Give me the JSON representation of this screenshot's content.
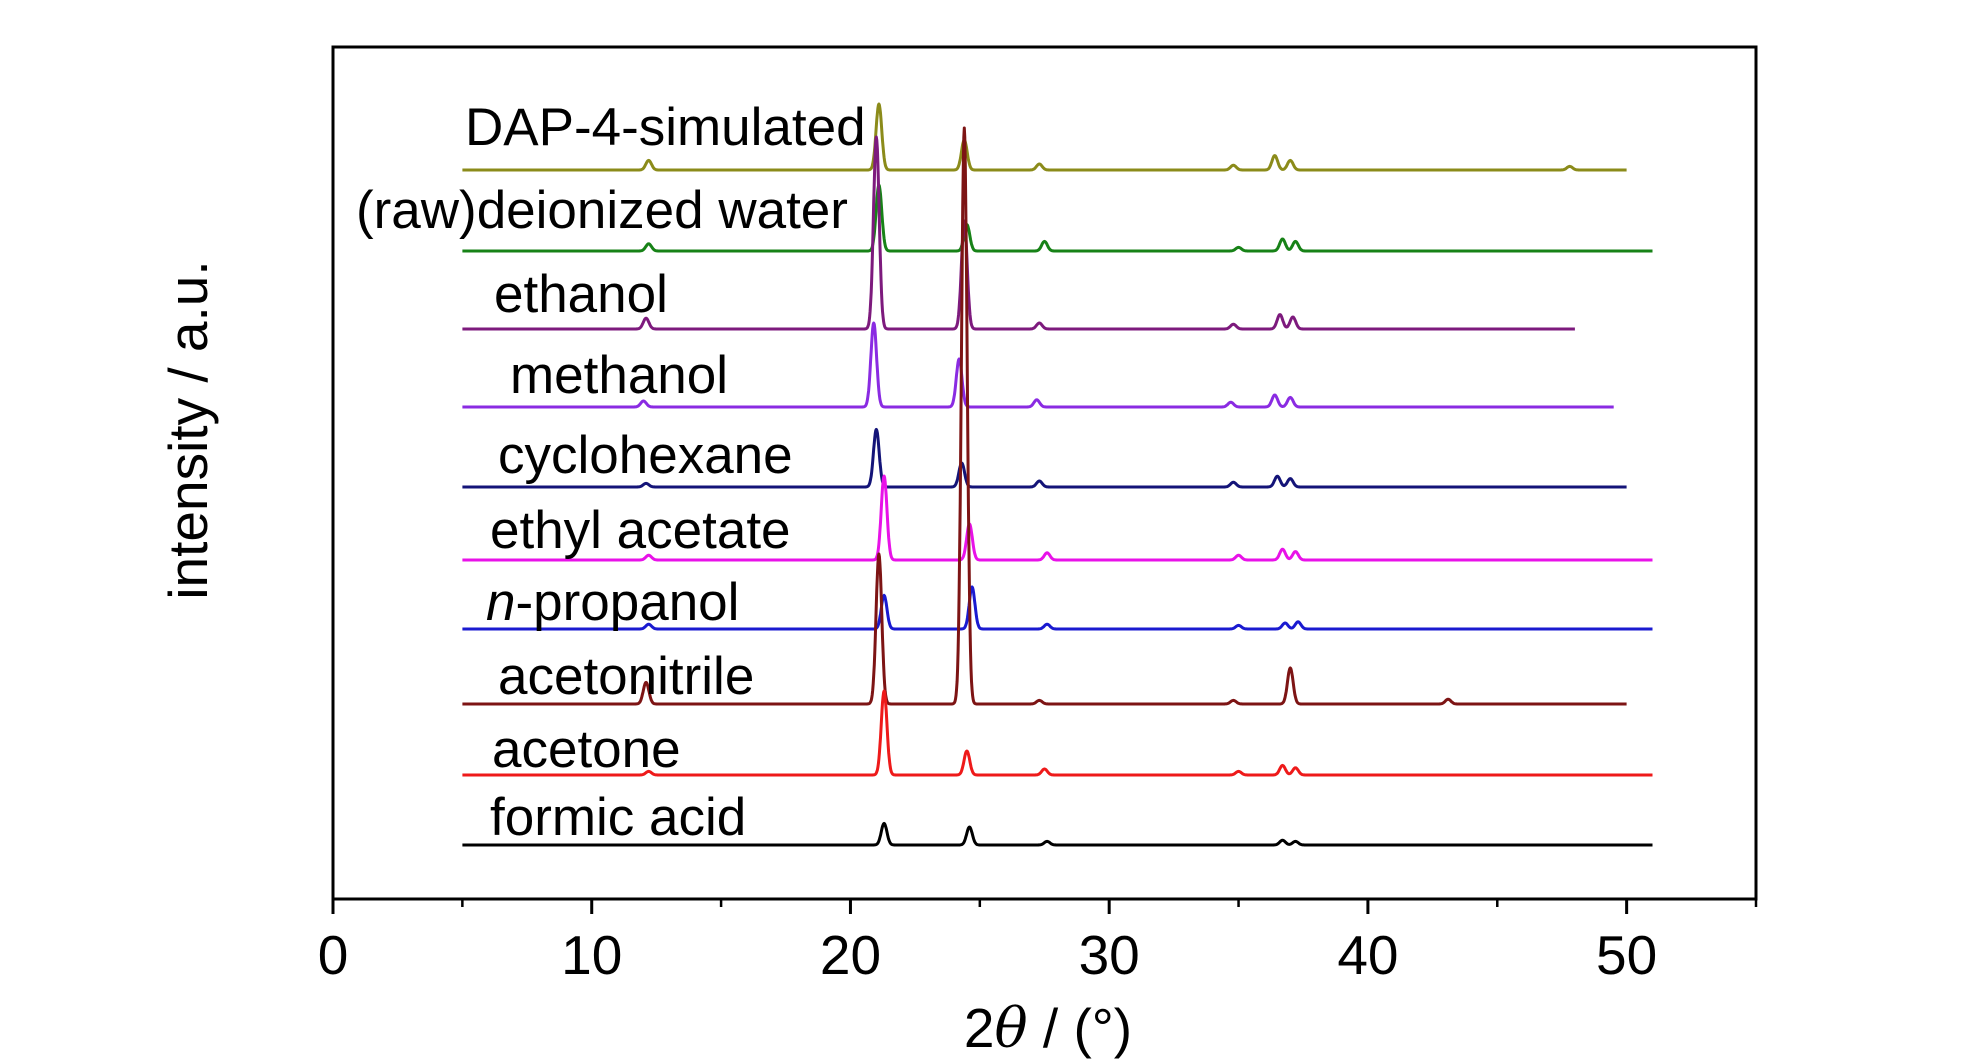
{
  "chart_data": {
    "type": "line",
    "xlabel": {
      "prefix": "2",
      "symbol": "θ",
      "suffix": " / (°)"
    },
    "ylabel": "intensity / a.u.",
    "xlim": [
      0,
      55
    ],
    "xticks": [
      0,
      10,
      20,
      30,
      40,
      50
    ],
    "xticks_minor": [
      5,
      15,
      25,
      35,
      45,
      55
    ],
    "grid": false,
    "legend": "none",
    "series": [
      {
        "name": "DAP-4-simulated",
        "color": "#8b8b1a",
        "x_range": [
          5,
          50
        ],
        "peaks": [
          [
            12.2,
            8
          ],
          [
            21.1,
            55
          ],
          [
            24.4,
            25
          ],
          [
            27.3,
            5
          ],
          [
            34.8,
            4
          ],
          [
            36.4,
            12
          ],
          [
            37.0,
            8
          ],
          [
            47.8,
            3
          ]
        ]
      },
      {
        "name_parts": [
          "(raw)deionized water"
        ],
        "color": "#178217",
        "x_range": [
          5,
          51
        ],
        "peaks": [
          [
            12.2,
            6
          ],
          [
            21.1,
            55
          ],
          [
            24.5,
            22
          ],
          [
            27.5,
            8
          ],
          [
            35.0,
            3
          ],
          [
            36.7,
            10
          ],
          [
            37.2,
            8
          ]
        ]
      },
      {
        "name_parts": [
          "ethanol"
        ],
        "color": "#7d1a7d",
        "x_range": [
          5,
          48
        ],
        "peaks": [
          [
            12.1,
            9
          ],
          [
            21.0,
            160
          ],
          [
            24.4,
            90
          ],
          [
            27.3,
            5
          ],
          [
            34.8,
            4
          ],
          [
            36.6,
            12
          ],
          [
            37.1,
            10
          ]
        ]
      },
      {
        "name_parts": [
          "methanol"
        ],
        "color": "#8a2be2",
        "x_range": [
          5,
          49.5
        ],
        "peaks": [
          [
            12.0,
            5
          ],
          [
            20.9,
            70
          ],
          [
            24.2,
            40
          ],
          [
            27.2,
            6
          ],
          [
            34.7,
            4
          ],
          [
            36.4,
            10
          ],
          [
            37.0,
            8
          ]
        ]
      },
      {
        "name_parts": [
          "cyclohexane"
        ],
        "color": "#141478",
        "x_range": [
          5,
          50
        ],
        "peaks": [
          [
            12.1,
            3
          ],
          [
            21.0,
            48
          ],
          [
            24.3,
            20
          ],
          [
            27.3,
            5
          ],
          [
            34.8,
            4
          ],
          [
            36.5,
            9
          ],
          [
            37.0,
            7
          ]
        ]
      },
      {
        "name_parts": [
          "ethyl acetate"
        ],
        "color": "#e812e8",
        "x_range": [
          5,
          51
        ],
        "peaks": [
          [
            12.2,
            4
          ],
          [
            21.3,
            70
          ],
          [
            24.6,
            30
          ],
          [
            27.6,
            6
          ],
          [
            35.0,
            4
          ],
          [
            36.7,
            9
          ],
          [
            37.2,
            7
          ]
        ]
      },
      {
        "name_parts": [
          "n",
          "-propanol"
        ],
        "color": "#1a1ad0",
        "x_range": [
          5,
          51
        ],
        "peaks": [
          [
            12.2,
            4
          ],
          [
            21.3,
            28
          ],
          [
            24.7,
            35
          ],
          [
            27.6,
            4
          ],
          [
            35.0,
            3
          ],
          [
            36.8,
            5
          ],
          [
            37.3,
            6
          ]
        ]
      },
      {
        "name_parts": [
          "acetonitrile"
        ],
        "color": "#7d1414",
        "x_range": [
          5,
          50
        ],
        "peaks": [
          [
            12.1,
            18
          ],
          [
            21.1,
            125
          ],
          [
            24.4,
            480
          ],
          [
            27.3,
            3
          ],
          [
            34.8,
            3
          ],
          [
            37.0,
            30
          ],
          [
            43.1,
            4
          ]
        ]
      },
      {
        "name_parts": [
          "acetone"
        ],
        "color": "#ee1a1a",
        "x_range": [
          5,
          51
        ],
        "peaks": [
          [
            12.2,
            3
          ],
          [
            21.3,
            70
          ],
          [
            24.5,
            20
          ],
          [
            27.5,
            5
          ],
          [
            35.0,
            3
          ],
          [
            36.7,
            8
          ],
          [
            37.2,
            6
          ]
        ]
      },
      {
        "name_parts": [
          "formic acid"
        ],
        "color": "#000000",
        "x_range": [
          5,
          51
        ],
        "peaks": [
          [
            21.3,
            18
          ],
          [
            24.6,
            15
          ],
          [
            27.6,
            3
          ],
          [
            36.7,
            4
          ],
          [
            37.2,
            3
          ]
        ]
      }
    ]
  }
}
